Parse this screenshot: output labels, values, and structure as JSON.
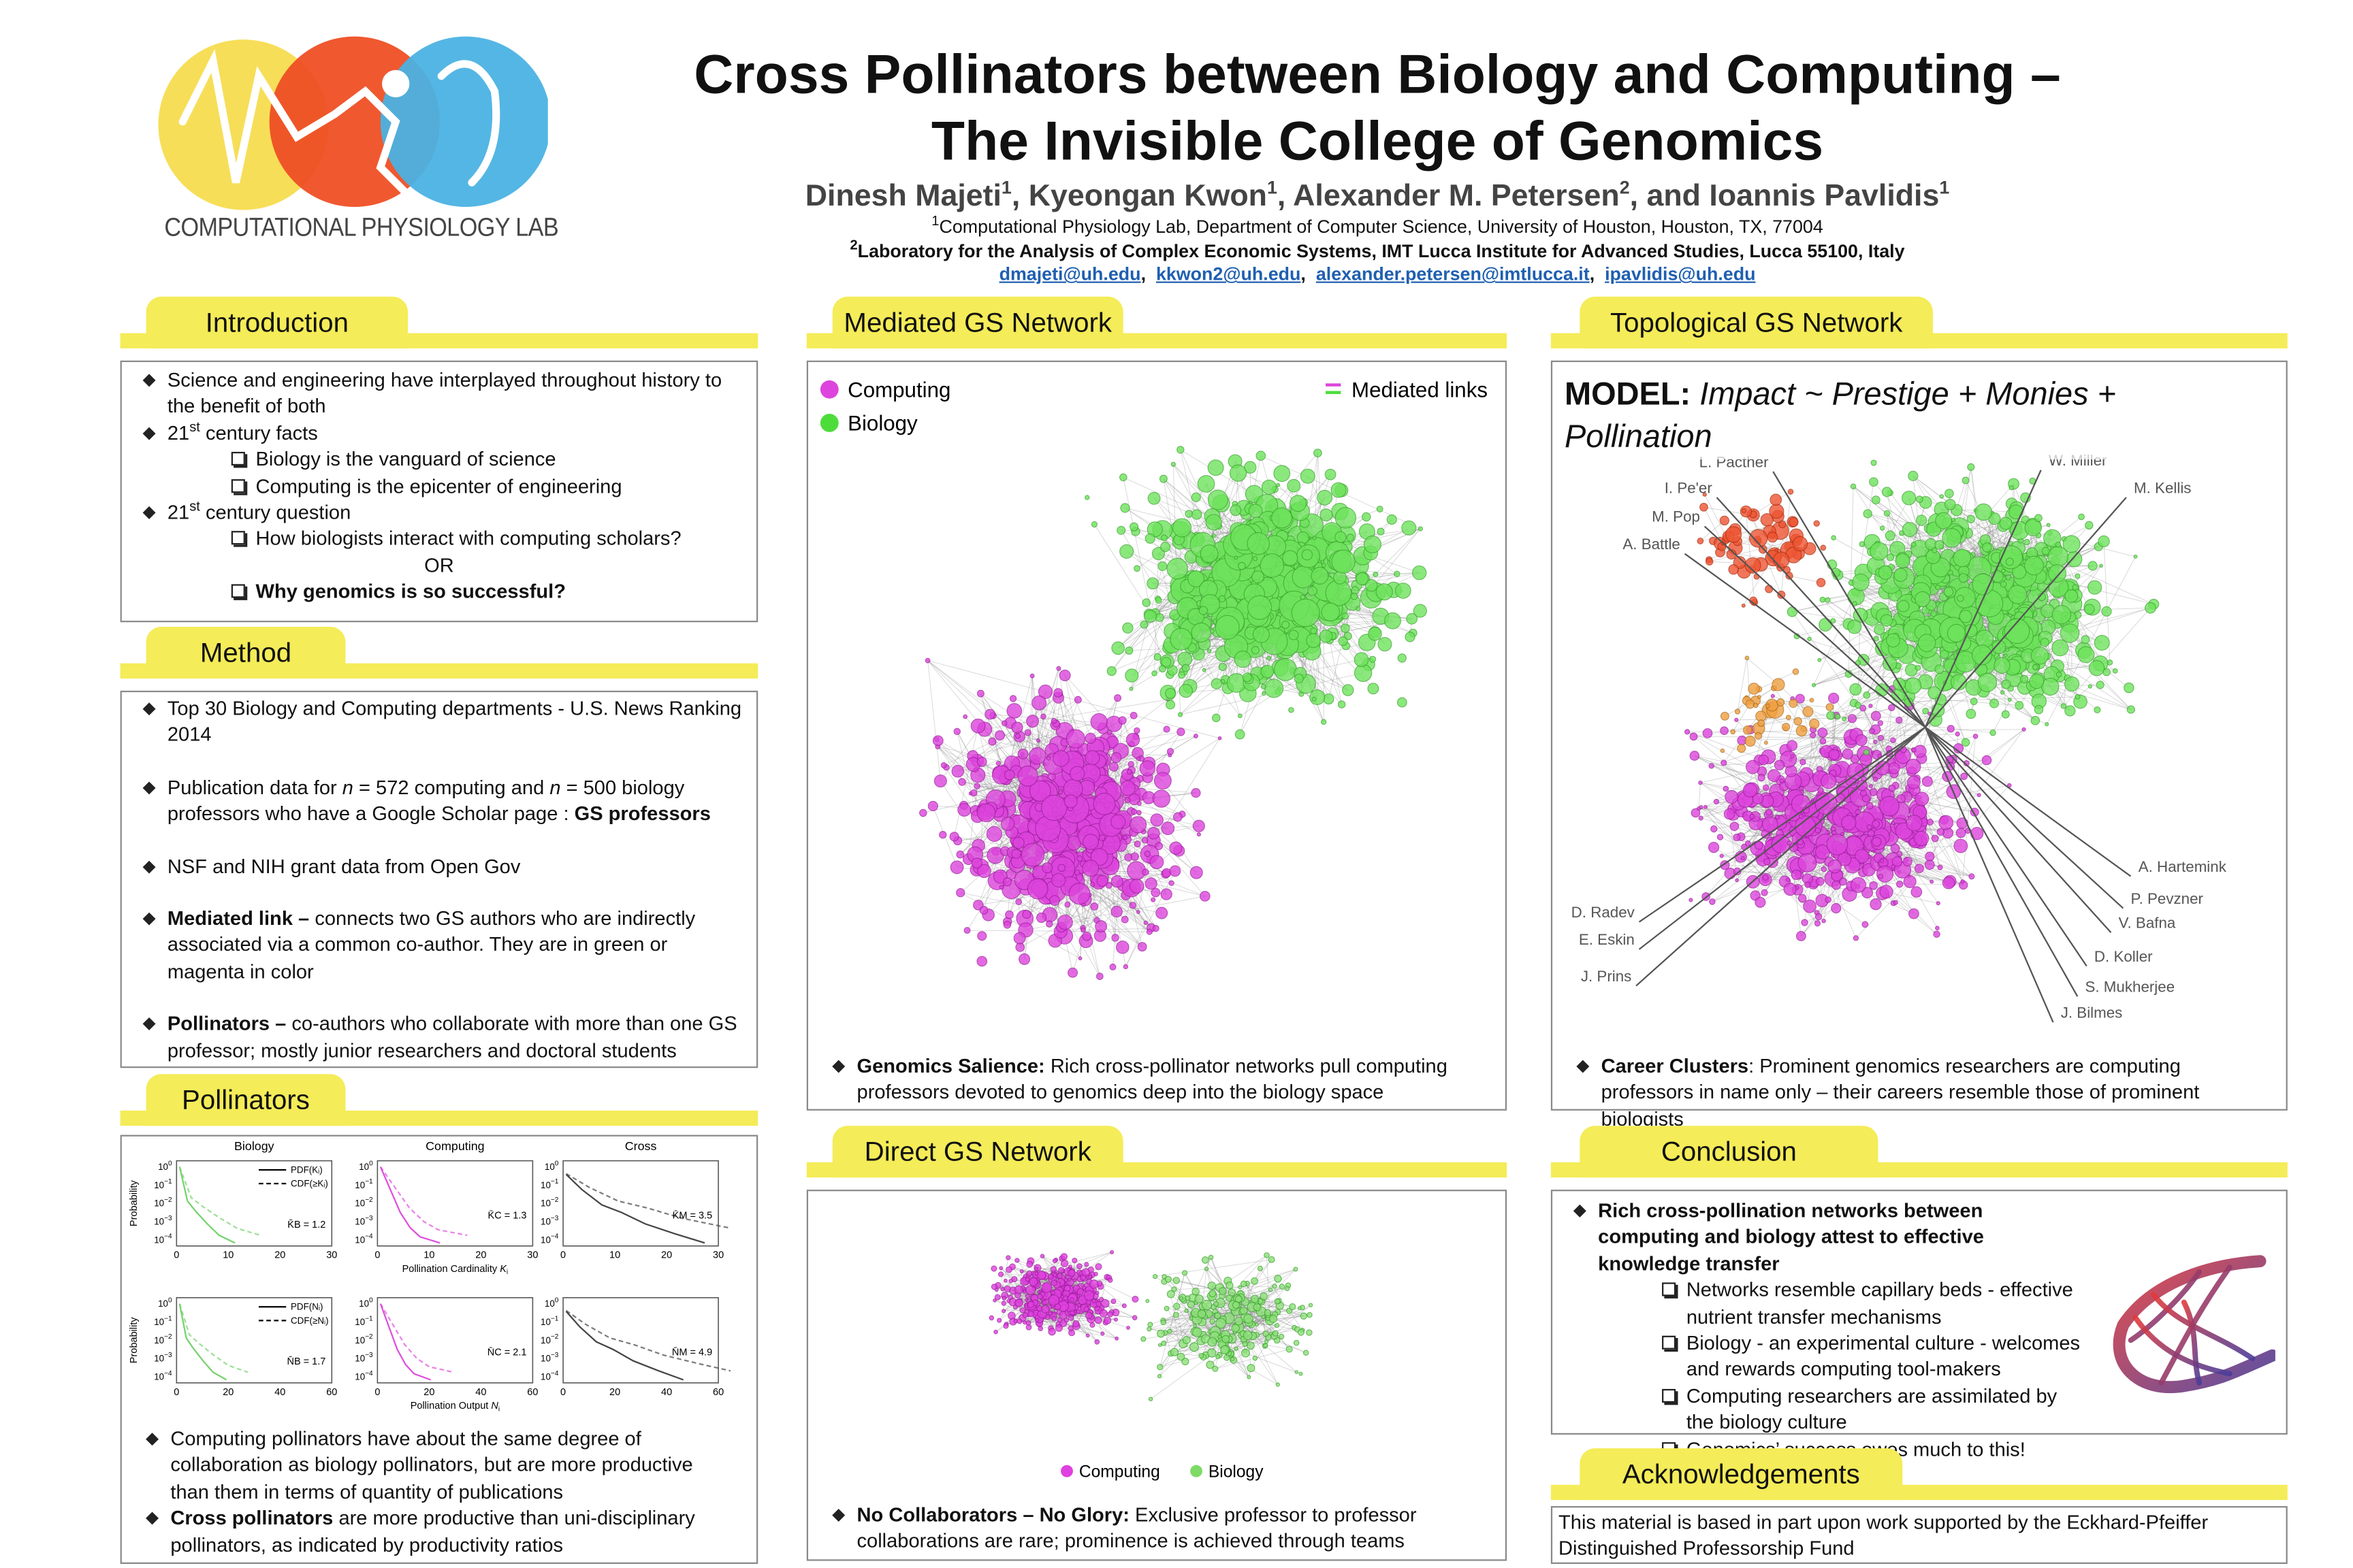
{
  "header": {
    "title_line1": "Cross Pollinators between Biology and Computing –",
    "title_line2": "The Invisible College of Genomics",
    "logo_text": "COMPUTATIONAL PHYSIOLOGY LAB",
    "authors": [
      {
        "name": "Dinesh Majeti",
        "sup": "1",
        "sep": ","
      },
      {
        "name": "Kyeongan Kwon",
        "sup": "1",
        "sep": ","
      },
      {
        "name": "Alexander M. Petersen",
        "sup": "2",
        "sep": ", and"
      },
      {
        "name": "Ioannis Pavlidis",
        "sup": "1"
      }
    ],
    "affiliations": [
      {
        "sup": "1",
        "text": "Computational Physiology Lab, Department of Computer Science, University of Houston, Houston, TX, 77004"
      },
      {
        "sup": "2",
        "text": "Laboratory for the Analysis of Complex Economic Systems, IMT Lucca Institute for Advanced Studies, Lucca 55100,  Italy"
      }
    ],
    "emails": [
      "dmajeti@uh.edu",
      "kkwon2@uh.edu",
      "alexander.petersen@imtlucca.it",
      "ipavlidis@uh.edu"
    ],
    "email_separator": ","
  },
  "introduction": {
    "title": "Introduction",
    "items": [
      {
        "level": 1,
        "parts": [
          {
            "text": "Science and engineering have interplayed throughout history to the benefit of both"
          }
        ]
      },
      {
        "level": 1,
        "parts": [
          {
            "text": "21"
          },
          {
            "text": "st",
            "sup": true
          },
          {
            "text": " century facts"
          }
        ]
      },
      {
        "level": 2,
        "parts": [
          {
            "text": "Biology is the vanguard of science"
          }
        ]
      },
      {
        "level": 2,
        "parts": [
          {
            "text": "Computing is the epicenter of engineering"
          }
        ]
      },
      {
        "level": 1,
        "parts": [
          {
            "text": "21"
          },
          {
            "text": "st",
            "sup": true
          },
          {
            "text": " century question"
          }
        ]
      },
      {
        "level": 2,
        "parts": [
          {
            "text": "How biologists interact with computing scholars?"
          }
        ]
      },
      {
        "level": 0,
        "parts": [
          {
            "text": "OR"
          }
        ]
      },
      {
        "level": 2,
        "parts": [
          {
            "text": "Why genomics is so successful?",
            "bold": true
          }
        ]
      }
    ]
  },
  "method": {
    "title": "Method",
    "items": [
      {
        "level": 1,
        "parts": [
          {
            "text": "Top 30 Biology and Computing departments - U.S. News Ranking 2014"
          }
        ]
      },
      {
        "level": 1,
        "parts": [
          {
            "text": "Publication data for "
          },
          {
            "text": "n",
            "italic": true
          },
          {
            "text": " = 572 computing and "
          },
          {
            "text": "n",
            "italic": true
          },
          {
            "text": " = 500 biology professors who have a Google Scholar page : "
          },
          {
            "text": "GS professors",
            "bold": true
          }
        ]
      },
      {
        "level": 1,
        "parts": [
          {
            "text": "NSF and NIH grant data from Open Gov"
          }
        ]
      },
      {
        "level": 1,
        "parts": [
          {
            "text": "Mediated link –",
            "bold": true
          },
          {
            "text": "  connects two GS authors who are indirectly associated via a common co-author. They are in green or magenta in color"
          }
        ]
      },
      {
        "level": 1,
        "parts": [
          {
            "text": "Pollinators –",
            "bold": true
          },
          {
            "text": " co-authors who collaborate with more than one GS professor; mostly junior researchers and doctoral students"
          }
        ]
      }
    ]
  },
  "pollinators": {
    "title": "Pollinators",
    "figure": {
      "columns": [
        "Biology",
        "Computing",
        "Cross"
      ],
      "y_label": "Probability",
      "ytick_base": "10",
      "ytick_exponents": [
        "0",
        "−1",
        "−2",
        "−3",
        "−4"
      ],
      "x_label_top": [
        {
          "text": "Pollination Cardinality "
        },
        {
          "text": "K",
          "italic": true
        },
        {
          "text": "i",
          "sub": true
        }
      ],
      "x_label_bottom": [
        {
          "text": "Pollination Output "
        },
        {
          "text": "N",
          "italic": true
        },
        {
          "text": "i",
          "sub": true
        }
      ],
      "xticks_top": [
        0,
        10,
        20,
        30
      ],
      "xticks_bottom": [
        0,
        20,
        40,
        60
      ],
      "legend_top": [
        "PDF(Kᵢ)",
        "CDF(≥Kᵢ)"
      ],
      "legend_bottom": [
        "PDF(Nᵢ)",
        "CDF(≥Nᵢ)"
      ],
      "means": [
        "K̄B = 1.2",
        "K̄C = 1.3",
        "K̄M = 3.5",
        "N̄B = 1.7",
        "N̄C = 2.1",
        "N̄M = 4.9"
      ]
    },
    "items": [
      {
        "level": 1,
        "parts": [
          {
            "text": "Computing pollinators have about the same degree of collaboration as biology pollinators, but are more productive than them in terms of quantity of publications"
          }
        ]
      },
      {
        "level": 1,
        "parts": [
          {
            "text": "Cross pollinators",
            "bold": true
          },
          {
            "text": " are more productive than uni-disciplinary pollinators, as indicated by productivity ratios"
          }
        ]
      }
    ]
  },
  "mediated": {
    "title": "Mediated GS Network",
    "legend": [
      "Computing",
      "Biology"
    ],
    "links_label": "Mediated links",
    "items": [
      {
        "level": 1,
        "parts": [
          {
            "text": "Genomics Salience:",
            "bold": true
          },
          {
            "text": " Rich cross-pollinator networks pull computing professors devoted to genomics deep into the biology space"
          }
        ]
      }
    ]
  },
  "direct": {
    "title": "Direct GS Network",
    "legend": [
      "Computing",
      "Biology"
    ],
    "items": [
      {
        "level": 1,
        "parts": [
          {
            "text": "No Collaborators – No Glory:",
            "bold": true
          },
          {
            "text": " Exclusive professor to professor collaborations are rare; prominence is achieved through teams"
          }
        ]
      }
    ]
  },
  "topological": {
    "title": "Topological GS Network",
    "model": [
      {
        "text": "MODEL:",
        "bold": true
      },
      {
        "text": " Impact ~ Prestige + Monies + Pollination",
        "italic": true
      }
    ],
    "names": [
      "L. Pacther",
      "I. Pe'er",
      "M. Pop",
      "A. Battle",
      "W. Miller",
      "M. Kellis",
      "A. Hartemink",
      "P. Pevzner",
      "V. Bafna",
      "D. Koller",
      "S. Mukherjee",
      "J. Bilmes",
      "D. Radev",
      "E. Eskin",
      "J. Prins"
    ],
    "items": [
      {
        "level": 1,
        "parts": [
          {
            "text": "Career Clusters",
            "bold": true
          },
          {
            "text": ": Prominent genomics researchers are computing professors in name only – their careers resemble those of prominent biologists"
          }
        ]
      }
    ]
  },
  "conclusion": {
    "title": "Conclusion",
    "items": [
      {
        "level": 1,
        "parts": [
          {
            "text": "Rich cross-pollination networks between computing and biology attest to effective knowledge transfer",
            "bold": true
          }
        ]
      },
      {
        "level": 2,
        "parts": [
          {
            "text": "Networks resemble capillary beds - effective nutrient transfer mechanisms"
          }
        ]
      },
      {
        "level": 2,
        "parts": [
          {
            "text": "Biology - an experimental culture - welcomes and rewards computing tool-makers"
          }
        ]
      },
      {
        "level": 2,
        "parts": [
          {
            "text": "Computing researchers are assimilated by the biology culture"
          }
        ]
      },
      {
        "level": 2,
        "parts": [
          {
            "text": "Genomics’ success owes much to this!"
          }
        ]
      }
    ]
  },
  "acknowledgements": {
    "title": "Acknowledgements",
    "text": "This material is based in part upon work supported by the Eckhard-Pfeiffer Distinguished Professorship Fund"
  }
}
